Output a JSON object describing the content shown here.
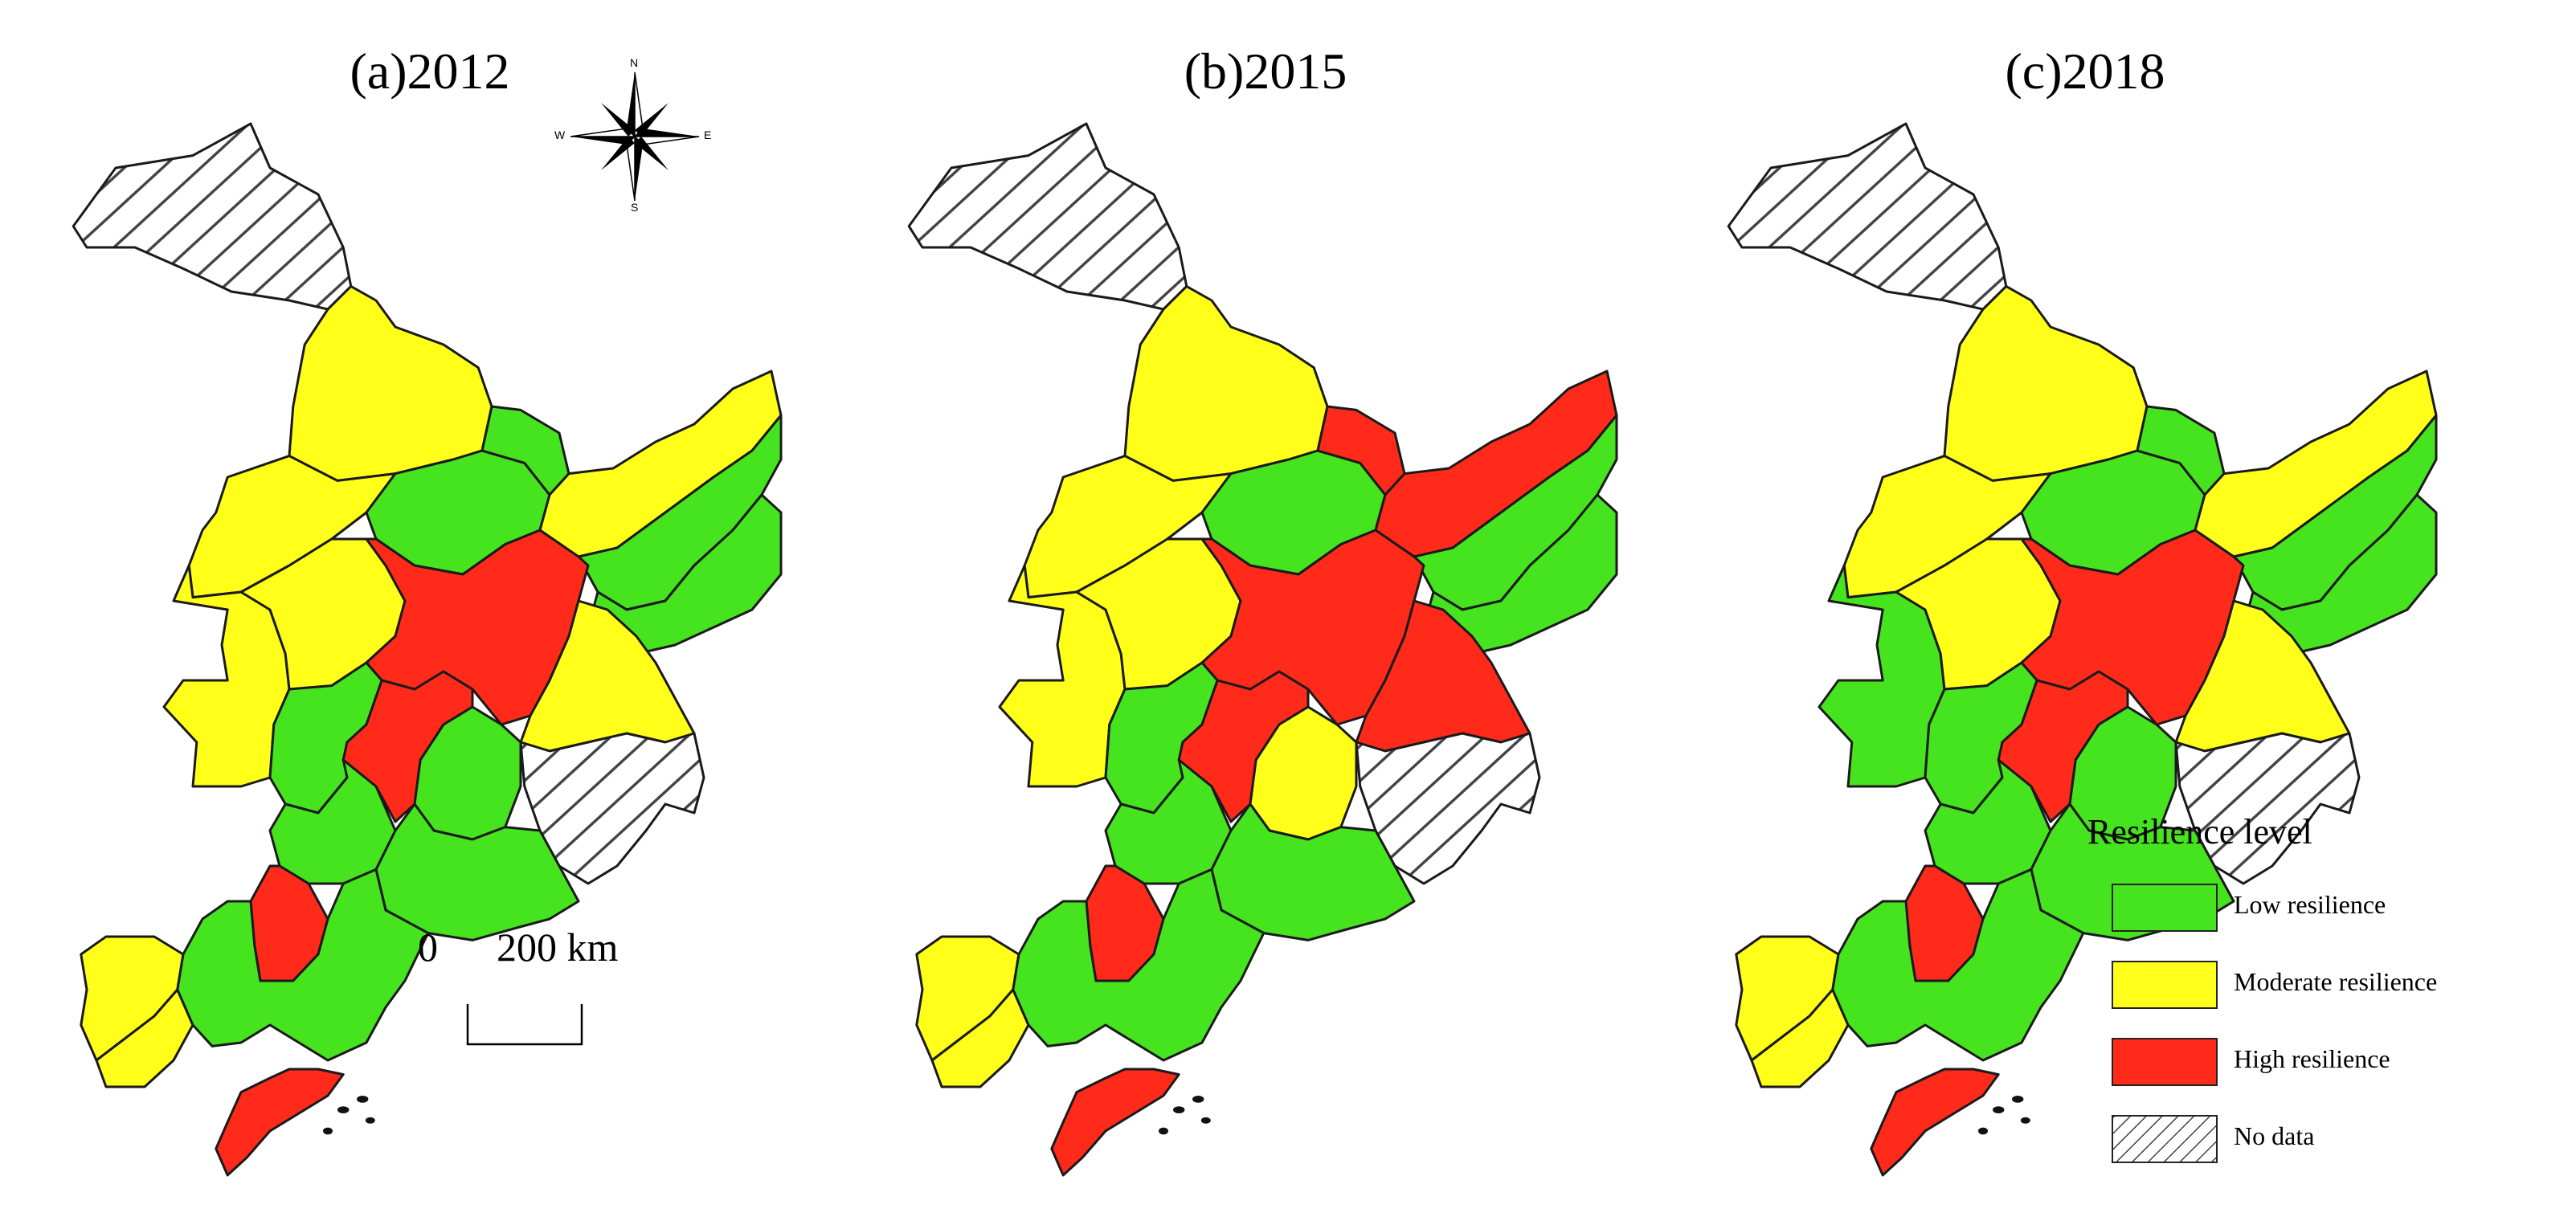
{
  "colors": {
    "low": "#46e31f",
    "moderate": "#ffff1a",
    "high": "#ff2a1a",
    "no_data": "hatch"
  },
  "panels": [
    {
      "title": "(a)2012",
      "regions": {
        "far_north": "no_data",
        "north_west": "moderate",
        "north_center": "moderate",
        "north_east_a": "green",
        "north_east_b": "green",
        "north_east_strip": "moderate",
        "east_coast_a": "green",
        "east_coast_b": "green",
        "west_mid_a": "moderate",
        "west_mid_b": "moderate",
        "central_big": "high",
        "center_west": "green",
        "center_south": "high",
        "center_east": "moderate",
        "south_east_nodata": "no_data",
        "south_center_a": "green",
        "south_center_b": "green",
        "south_center_c": "green",
        "south_west_strip": "high",
        "south_west_a": "moderate",
        "south_west_b": "moderate",
        "south_coast": "green",
        "peninsula": "high"
      }
    },
    {
      "title": "(b)2015",
      "regions": {
        "far_north": "no_data",
        "north_west": "moderate",
        "north_center": "moderate",
        "north_east_a": "green",
        "north_east_b": "high",
        "north_east_strip": "high",
        "east_coast_a": "green",
        "east_coast_b": "green",
        "west_mid_a": "moderate",
        "west_mid_b": "moderate",
        "central_big": "high",
        "center_west": "green",
        "center_south": "high",
        "center_east": "high",
        "south_east_nodata": "no_data",
        "south_center_a": "moderate",
        "south_center_b": "green",
        "south_center_c": "green",
        "south_west_strip": "high",
        "south_west_a": "moderate",
        "south_west_b": "moderate",
        "south_coast": "green",
        "peninsula": "high"
      }
    },
    {
      "title": "(c)2018",
      "regions": {
        "far_north": "no_data",
        "north_west": "moderate",
        "north_center": "moderate",
        "north_east_a": "green",
        "north_east_b": "green",
        "north_east_strip": "moderate",
        "east_coast_a": "green",
        "east_coast_b": "green",
        "west_mid_a": "green",
        "west_mid_b": "moderate",
        "central_big": "high",
        "center_west": "green",
        "center_south": "high",
        "center_east": "moderate",
        "south_east_nodata": "no_data",
        "south_center_a": "green",
        "south_center_b": "green",
        "south_center_c": "green",
        "south_west_strip": "high",
        "south_west_a": "moderate",
        "south_west_b": "moderate",
        "south_coast": "green",
        "peninsula": "high"
      }
    }
  ],
  "compass": {
    "n": "N",
    "s": "S",
    "e": "E",
    "w": "W"
  },
  "scale": {
    "zero": "0",
    "distance": "200 km"
  },
  "legend": {
    "title": "Resilience level",
    "items": [
      {
        "key": "low",
        "label": "Low resilience"
      },
      {
        "key": "moderate",
        "label": "Moderate resilience"
      },
      {
        "key": "high",
        "label": "High resilience"
      },
      {
        "key": "no_data",
        "label": "No data"
      }
    ]
  }
}
